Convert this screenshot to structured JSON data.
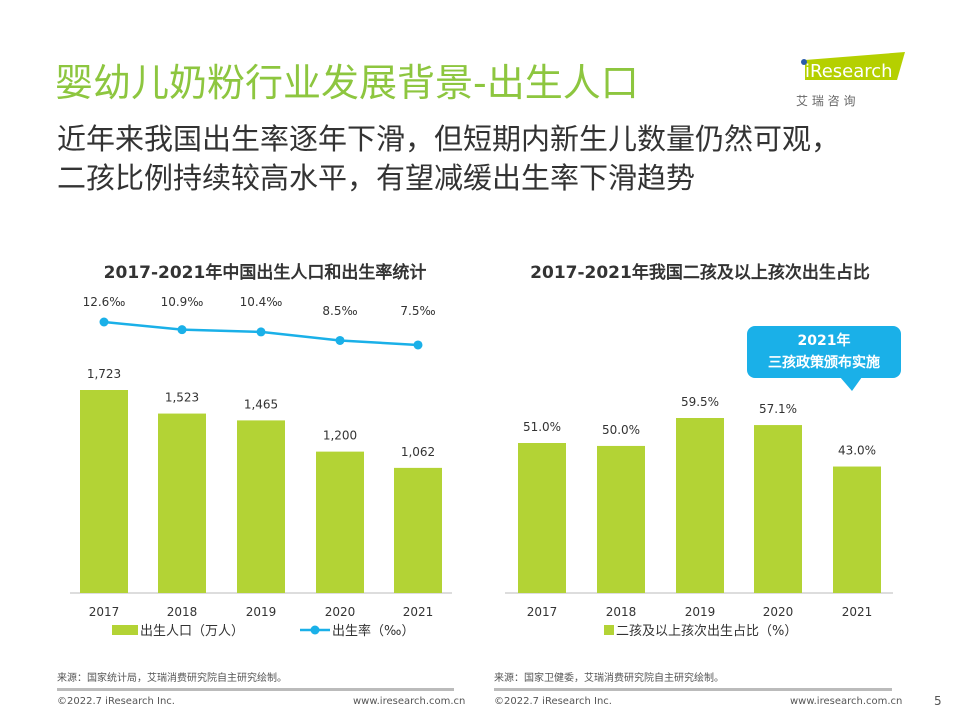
{
  "header": {
    "title": "婴幼儿奶粉行业发展背景-出生人口",
    "subtitle_line1": "近年来我国出生率逐年下滑，但短期内新生儿数量仍然可观，",
    "subtitle_line2": "二孩比例持续较高水平，有望减缓出生率下滑趋势"
  },
  "logo": {
    "brand": "iResearch",
    "cn": "艾 瑞 咨 询",
    "color": "#b5d000"
  },
  "callout": {
    "line1": "2021年",
    "line2": "三孩政策颁布实施",
    "color": "#1ab0e8"
  },
  "chart_data": [
    {
      "type": "bar+line",
      "title": "2017-2021年中国出生人口和出生率统计",
      "categories": [
        "2017",
        "2018",
        "2019",
        "2020",
        "2021"
      ],
      "series": [
        {
          "name": "出生人口（万人）",
          "type": "bar",
          "values": [
            1723,
            1523,
            1465,
            1200,
            1062
          ],
          "labels": [
            "1,723",
            "1,523",
            "1,465",
            "1,200",
            "1,062"
          ],
          "color": "#b3d335"
        },
        {
          "name": "出生率（‰）",
          "type": "line",
          "values": [
            12.6,
            10.9,
            10.4,
            8.5,
            7.5
          ],
          "labels": [
            "12.6‰",
            "10.9‰",
            "10.4‰",
            "8.5‰",
            "7.5‰"
          ],
          "color": "#1ab0e8"
        }
      ],
      "legend": "bottom"
    },
    {
      "type": "bar",
      "title": "2017-2021年我国二孩及以上孩次出生占比",
      "categories": [
        "2017",
        "2018",
        "2019",
        "2020",
        "2021"
      ],
      "series": [
        {
          "name": "二孩及以上孩次出生占比（%）",
          "values": [
            51.0,
            50.0,
            59.5,
            57.1,
            43.0
          ],
          "labels": [
            "51.0%",
            "50.0%",
            "59.5%",
            "57.1%",
            "43.0%"
          ],
          "color": "#b3d335"
        }
      ],
      "legend": "bottom"
    }
  ],
  "footer": {
    "source_left": "来源：国家统计局，艾瑞消费研究院自主研究绘制。",
    "source_right": "来源：国家卫健委，艾瑞消费研究院自主研究绘制。",
    "copyright": "©2022.7 iResearch Inc.",
    "url": "www.iresearch.com.cn",
    "page": "5"
  }
}
